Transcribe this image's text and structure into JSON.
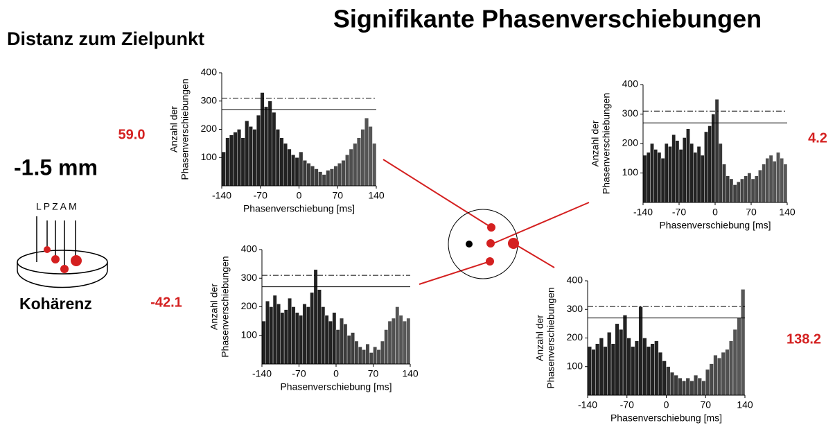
{
  "title": "Signifikante Phasenverschiebungen",
  "left_panel": {
    "heading": "Distanz zum Zielpunkt",
    "distance": "-1.5 mm",
    "electrodes": "LPZAM",
    "label": "Kohärenz"
  },
  "chart_data": [
    {
      "type": "histogram",
      "annotation": "59.0",
      "ylabel": [
        "Anzahl der",
        "Phasenverschiebungen"
      ],
      "xlabel": "Phasenverschiebung [ms]",
      "bins": [
        -140,
        -133,
        -126,
        -119,
        -112,
        -105,
        -98,
        -91,
        -84,
        -77,
        -70,
        -63,
        -56,
        -49,
        -42,
        -35,
        -28,
        -21,
        -14,
        -7,
        0,
        7,
        14,
        21,
        28,
        35,
        42,
        49,
        56,
        63,
        70,
        77,
        84,
        91,
        98,
        105,
        112,
        119,
        126,
        133,
        140
      ],
      "values": [
        120,
        170,
        180,
        190,
        200,
        170,
        230,
        210,
        200,
        250,
        330,
        280,
        300,
        260,
        200,
        170,
        150,
        130,
        110,
        100,
        120,
        90,
        80,
        70,
        60,
        50,
        40,
        55,
        60,
        70,
        80,
        90,
        110,
        130,
        150,
        170,
        200,
        240,
        210,
        150
      ],
      "color": "#222222",
      "xlim": [
        -140,
        140
      ],
      "ylim": [
        0,
        400
      ],
      "xticks": [
        -140,
        -70,
        0,
        70,
        140
      ],
      "yticks": [
        100,
        200,
        300,
        400
      ],
      "hlines": [
        {
          "value": 310,
          "style": "dashdot"
        },
        {
          "value": 270,
          "style": "solid"
        }
      ]
    },
    {
      "type": "histogram",
      "annotation": "4.2",
      "ylabel": [
        "Anzahl der",
        "Phasenverschiebungen"
      ],
      "xlabel": "Phasenverschiebung [ms]",
      "bins": [
        -140,
        -133,
        -126,
        -119,
        -112,
        -105,
        -98,
        -91,
        -84,
        -77,
        -70,
        -63,
        -56,
        -49,
        -42,
        -35,
        -28,
        -21,
        -14,
        -7,
        0,
        7,
        14,
        21,
        28,
        35,
        42,
        49,
        56,
        63,
        70,
        77,
        84,
        91,
        98,
        105,
        112,
        119,
        126,
        133,
        140
      ],
      "values": [
        160,
        170,
        200,
        180,
        170,
        150,
        200,
        190,
        230,
        210,
        180,
        220,
        250,
        200,
        170,
        190,
        160,
        240,
        260,
        300,
        350,
        200,
        130,
        90,
        80,
        60,
        70,
        80,
        90,
        100,
        80,
        90,
        110,
        130,
        150,
        160,
        140,
        170,
        150,
        130
      ],
      "color": "#222222",
      "xlim": [
        -140,
        140
      ],
      "ylim": [
        0,
        400
      ],
      "xticks": [
        -140,
        -70,
        0,
        70,
        140
      ],
      "yticks": [
        100,
        200,
        300,
        400
      ],
      "hlines": [
        {
          "value": 310,
          "style": "dashdot"
        },
        {
          "value": 270,
          "style": "solid"
        }
      ]
    },
    {
      "type": "histogram",
      "annotation": "-42.1",
      "ylabel": [
        "Anzahl der",
        "Phasenverschiebungen"
      ],
      "xlabel": "Phasenverschiebung [ms]",
      "bins": [
        -140,
        -133,
        -126,
        -119,
        -112,
        -105,
        -98,
        -91,
        -84,
        -77,
        -70,
        -63,
        -56,
        -49,
        -42,
        -35,
        -28,
        -21,
        -14,
        -7,
        0,
        7,
        14,
        21,
        28,
        35,
        42,
        49,
        56,
        63,
        70,
        77,
        84,
        91,
        98,
        105,
        112,
        119,
        126,
        133,
        140
      ],
      "values": [
        150,
        220,
        200,
        240,
        210,
        180,
        190,
        230,
        200,
        180,
        170,
        210,
        200,
        250,
        330,
        260,
        200,
        170,
        150,
        180,
        120,
        160,
        140,
        100,
        110,
        80,
        60,
        50,
        70,
        40,
        60,
        50,
        80,
        120,
        150,
        160,
        200,
        170,
        150,
        160
      ],
      "color": "#222222",
      "xlim": [
        -140,
        140
      ],
      "ylim": [
        0,
        400
      ],
      "xticks": [
        -140,
        -70,
        0,
        70,
        140
      ],
      "yticks": [
        100,
        200,
        300,
        400
      ],
      "hlines": [
        {
          "value": 310,
          "style": "dashdot"
        },
        {
          "value": 270,
          "style": "solid"
        }
      ]
    },
    {
      "type": "histogram",
      "annotation": "138.2",
      "ylabel": [
        "Anzahl der",
        "Phasenverschiebungen"
      ],
      "xlabel": "Phasenverschiebung [ms]",
      "bins": [
        -140,
        -133,
        -126,
        -119,
        -112,
        -105,
        -98,
        -91,
        -84,
        -77,
        -70,
        -63,
        -56,
        -49,
        -42,
        -35,
        -28,
        -21,
        -14,
        -7,
        0,
        7,
        14,
        21,
        28,
        35,
        42,
        49,
        56,
        63,
        70,
        77,
        84,
        91,
        98,
        105,
        112,
        119,
        126,
        133,
        140
      ],
      "values": [
        170,
        160,
        180,
        200,
        170,
        220,
        180,
        250,
        230,
        280,
        200,
        170,
        190,
        310,
        200,
        170,
        180,
        190,
        150,
        120,
        100,
        80,
        70,
        60,
        50,
        60,
        50,
        70,
        60,
        50,
        90,
        110,
        140,
        130,
        150,
        160,
        190,
        230,
        270,
        370
      ],
      "color": "#222222",
      "xlim": [
        -140,
        140
      ],
      "ylim": [
        0,
        400
      ],
      "xticks": [
        -140,
        -70,
        0,
        70,
        140
      ],
      "yticks": [
        100,
        200,
        300,
        400
      ],
      "hlines": [
        {
          "value": 310,
          "style": "dashdot"
        },
        {
          "value": 270,
          "style": "solid"
        }
      ]
    }
  ]
}
